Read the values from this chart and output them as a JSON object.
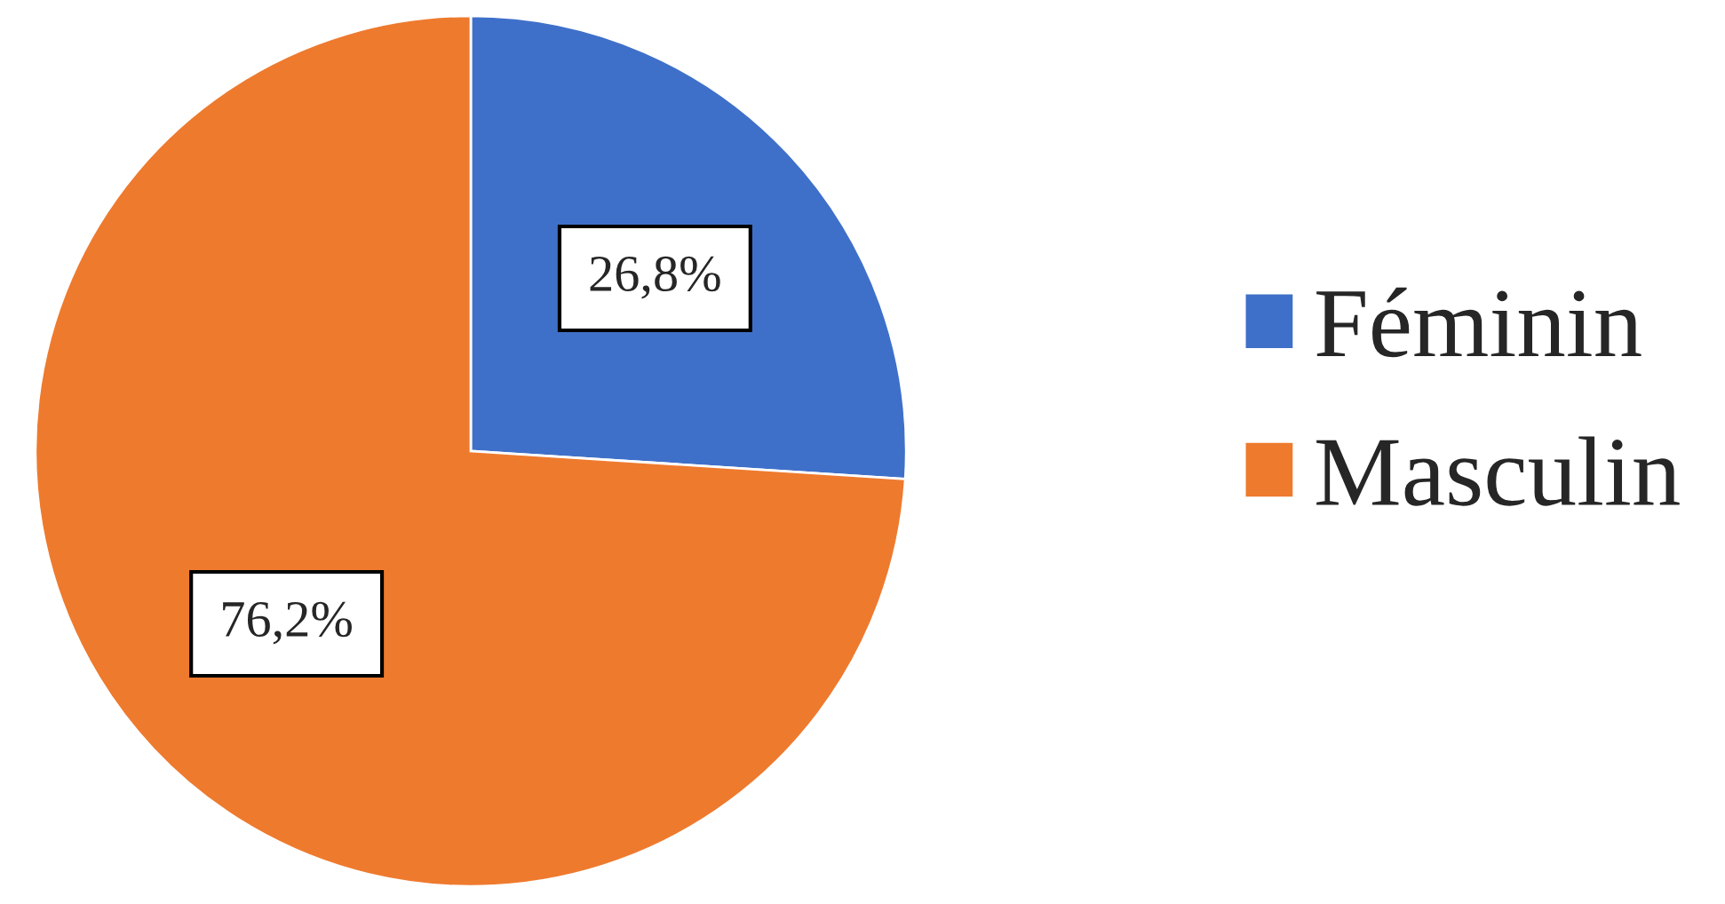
{
  "chart_data": {
    "type": "pie",
    "categories": [
      "Féminin",
      "Masculin"
    ],
    "values": [
      26.8,
      76.2
    ],
    "value_labels": [
      "26,8%",
      "76,2%"
    ],
    "colors": [
      "#3f70c9",
      "#ee7a2e"
    ],
    "legend": "right"
  }
}
